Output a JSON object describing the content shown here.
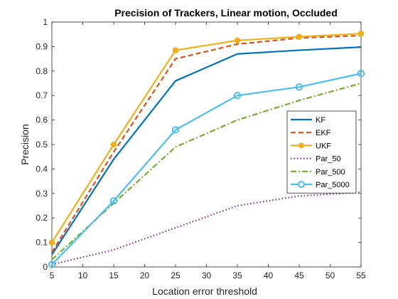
{
  "chart_data": {
    "type": "line",
    "title": "Precision of Trackers, Linear motion, Occluded",
    "xlabel": "Location error threshold",
    "ylabel": "Precision",
    "xlim": [
      5,
      55
    ],
    "ylim": [
      0,
      1
    ],
    "x": [
      5,
      15,
      25,
      35,
      45,
      55
    ],
    "xticks": [
      "5",
      "10",
      "15",
      "20",
      "25",
      "30",
      "35",
      "40",
      "45",
      "50",
      "55"
    ],
    "yticks": [
      "0",
      "0.1",
      "0.2",
      "0.3",
      "0.4",
      "0.5",
      "0.6",
      "0.7",
      "0.8",
      "0.9",
      "1"
    ],
    "grid": false,
    "legend_position": "right",
    "series": [
      {
        "name": "KF",
        "values": [
          0.05,
          0.44,
          0.76,
          0.87,
          0.885,
          0.898
        ],
        "color": "#0072BD",
        "dash": "solid",
        "marker": "none"
      },
      {
        "name": "EKF",
        "values": [
          0.06,
          0.47,
          0.85,
          0.91,
          0.935,
          0.945
        ],
        "color": "#D95319",
        "dash": "dashed",
        "marker": "none"
      },
      {
        "name": "UKF",
        "values": [
          0.1,
          0.5,
          0.885,
          0.925,
          0.94,
          0.953
        ],
        "color": "#EDB120",
        "dash": "solid",
        "marker": "dot"
      },
      {
        "name": "Par_50",
        "values": [
          0.01,
          0.07,
          0.16,
          0.25,
          0.29,
          0.305
        ],
        "color": "#7E2F8E",
        "dash": "dotted",
        "marker": "none"
      },
      {
        "name": "Par_500",
        "values": [
          0.03,
          0.26,
          0.49,
          0.6,
          0.68,
          0.75
        ],
        "color": "#77AC30",
        "dash": "dashdot",
        "marker": "none"
      },
      {
        "name": "Par_5000",
        "values": [
          0.01,
          0.27,
          0.56,
          0.7,
          0.735,
          0.79
        ],
        "color": "#4DBEEE",
        "dash": "solid",
        "marker": "circle"
      }
    ]
  }
}
